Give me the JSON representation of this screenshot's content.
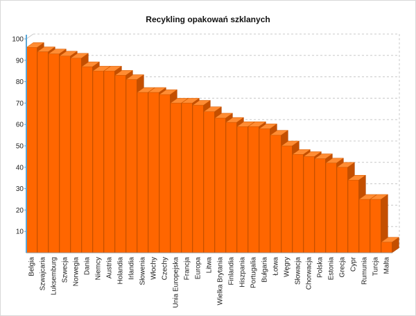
{
  "chart_data": {
    "type": "bar",
    "title": "Recykling opakowań szklanych",
    "xlabel": "",
    "ylabel": "",
    "ylim": [
      0,
      100
    ],
    "yticks": [
      10,
      20,
      30,
      40,
      50,
      60,
      70,
      80,
      90,
      100
    ],
    "grid": true,
    "style": "3d",
    "colors": {
      "front": "#ff6600",
      "top": "#ff8c33",
      "side": "#c44f00",
      "axis": "#5aa6d6",
      "grid": "#c8c8c8"
    },
    "categories": [
      "Belgia",
      "Szwajcaria",
      "Luksemburg",
      "Szwecja",
      "Norwegia",
      "Dania",
      "Niemcy",
      "Austria",
      "Holandia",
      "Irlandia",
      "Słowenia",
      "Włochy",
      "Czechy",
      "Unia Europejska",
      "Francja",
      "Europa",
      "Litwa",
      "Wielka Brytania",
      "Finlandia",
      "Hiszpania",
      "Portugalia",
      "Bułgaria",
      "Łotwa",
      "Węgry",
      "Słowacja",
      "Chorwacja",
      "Polska",
      "Estonia",
      "Grecja",
      "Cypr",
      "Rumunia",
      "Turcja",
      "Malta"
    ],
    "values": [
      96,
      94,
      93,
      92,
      91,
      87,
      85,
      85,
      83,
      81,
      75,
      75,
      74,
      70,
      70,
      69,
      66,
      63,
      61,
      59,
      59,
      58,
      55,
      50,
      46,
      45,
      44,
      42,
      40,
      34,
      25,
      25,
      5
    ]
  }
}
